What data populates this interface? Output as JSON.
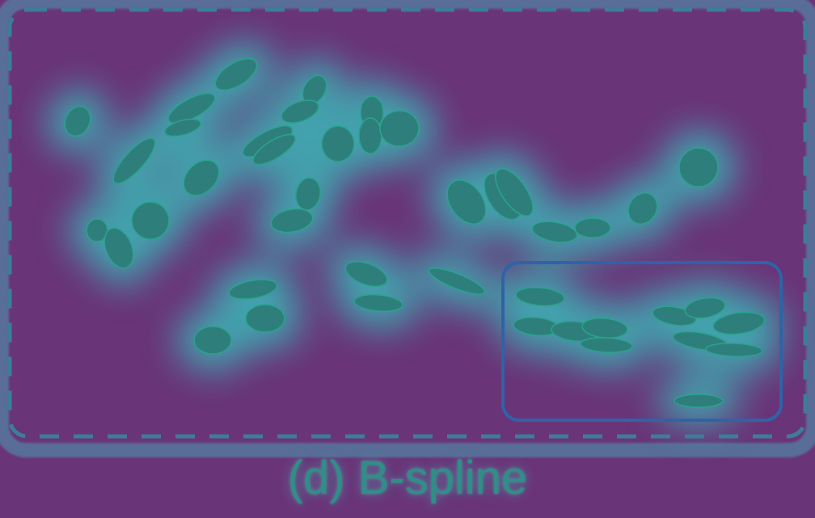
{
  "caption": "(d) B-spline",
  "colors": {
    "background": "#6a3479",
    "glow": "#3fa9b0",
    "particle_fill": "#2e7f7b",
    "particle_stroke": "#2aa38f",
    "dashed_frame": "#3c7d9a",
    "highlight_box": "#2e63a8",
    "caption": "#2f8f86"
  }
}
